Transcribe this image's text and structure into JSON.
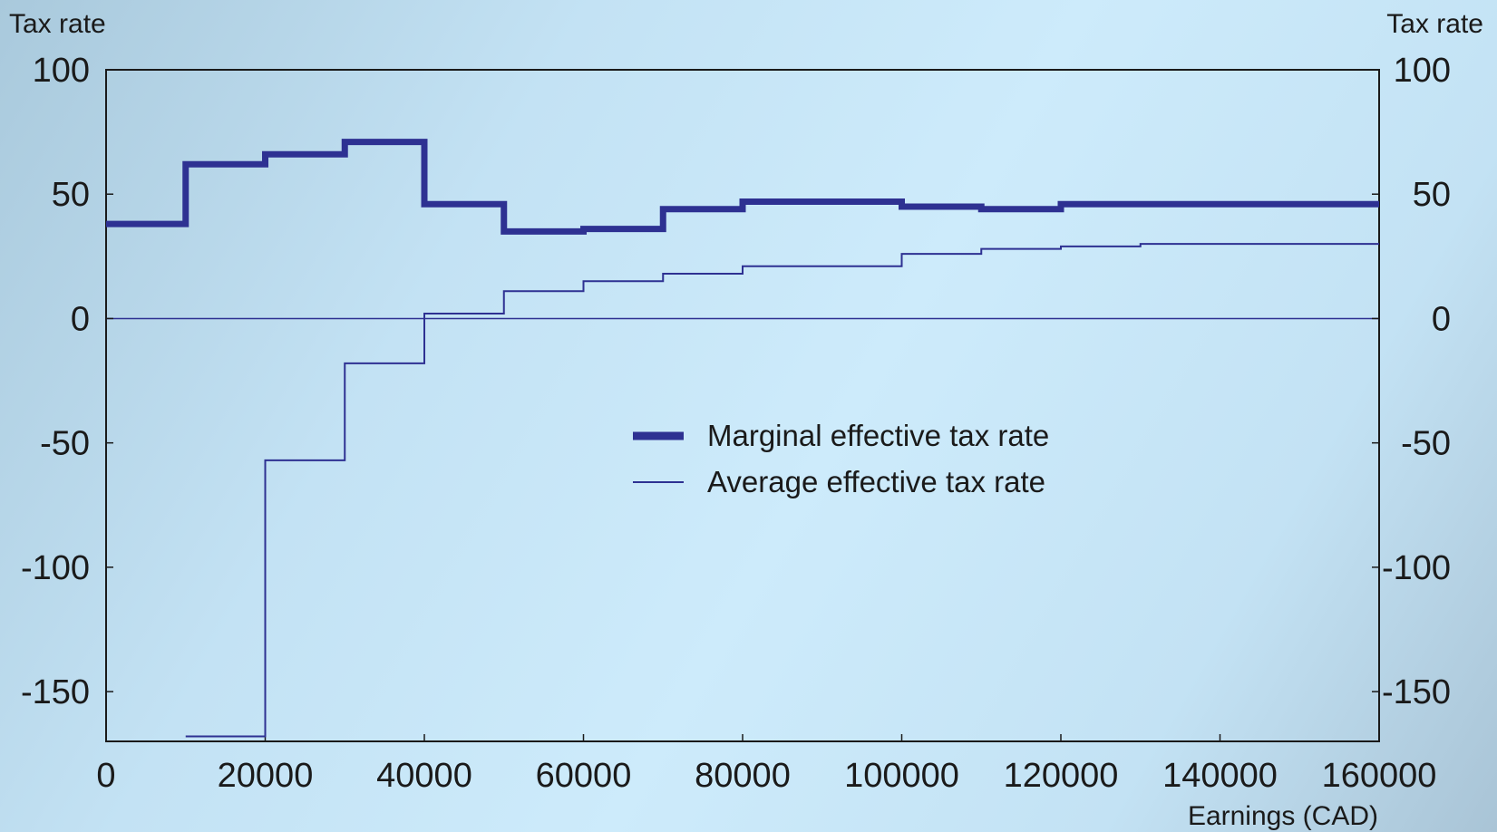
{
  "chart_data": {
    "type": "line",
    "left_axis_title": "Tax rate",
    "right_axis_title": "Tax rate",
    "xlabel": "Earnings (CAD)",
    "xlim": [
      0,
      160000
    ],
    "ylim": [
      -170,
      100
    ],
    "x_ticks": [
      0,
      20000,
      40000,
      60000,
      80000,
      100000,
      120000,
      140000,
      160000
    ],
    "y_ticks": [
      100,
      50,
      0,
      -50,
      -100,
      -150
    ],
    "grid": false,
    "legend_position": "center",
    "series": [
      {
        "name": "Marginal effective tax rate",
        "style": "thick",
        "color": "#2e3192",
        "steps": [
          {
            "x0": 0,
            "x1": 10000,
            "y": 38
          },
          {
            "x0": 10000,
            "x1": 20000,
            "y": 62
          },
          {
            "x0": 20000,
            "x1": 30000,
            "y": 66
          },
          {
            "x0": 30000,
            "x1": 40000,
            "y": 71
          },
          {
            "x0": 40000,
            "x1": 50000,
            "y": 46
          },
          {
            "x0": 50000,
            "x1": 60000,
            "y": 35
          },
          {
            "x0": 60000,
            "x1": 70000,
            "y": 36
          },
          {
            "x0": 70000,
            "x1": 80000,
            "y": 44
          },
          {
            "x0": 80000,
            "x1": 100000,
            "y": 47
          },
          {
            "x0": 100000,
            "x1": 110000,
            "y": 45
          },
          {
            "x0": 110000,
            "x1": 120000,
            "y": 44
          },
          {
            "x0": 120000,
            "x1": 160000,
            "y": 46
          }
        ]
      },
      {
        "name": "Average effective tax rate",
        "style": "thin",
        "color": "#2e3192",
        "steps": [
          {
            "x0": 10000,
            "x1": 20000,
            "y": -168
          },
          {
            "x0": 20000,
            "x1": 30000,
            "y": -57
          },
          {
            "x0": 30000,
            "x1": 40000,
            "y": -18
          },
          {
            "x0": 40000,
            "x1": 50000,
            "y": 2
          },
          {
            "x0": 50000,
            "x1": 60000,
            "y": 11
          },
          {
            "x0": 60000,
            "x1": 70000,
            "y": 15
          },
          {
            "x0": 70000,
            "x1": 80000,
            "y": 18
          },
          {
            "x0": 80000,
            "x1": 100000,
            "y": 21
          },
          {
            "x0": 100000,
            "x1": 110000,
            "y": 26
          },
          {
            "x0": 110000,
            "x1": 120000,
            "y": 28
          },
          {
            "x0": 120000,
            "x1": 130000,
            "y": 29
          },
          {
            "x0": 130000,
            "x1": 160000,
            "y": 30
          }
        ]
      }
    ]
  }
}
